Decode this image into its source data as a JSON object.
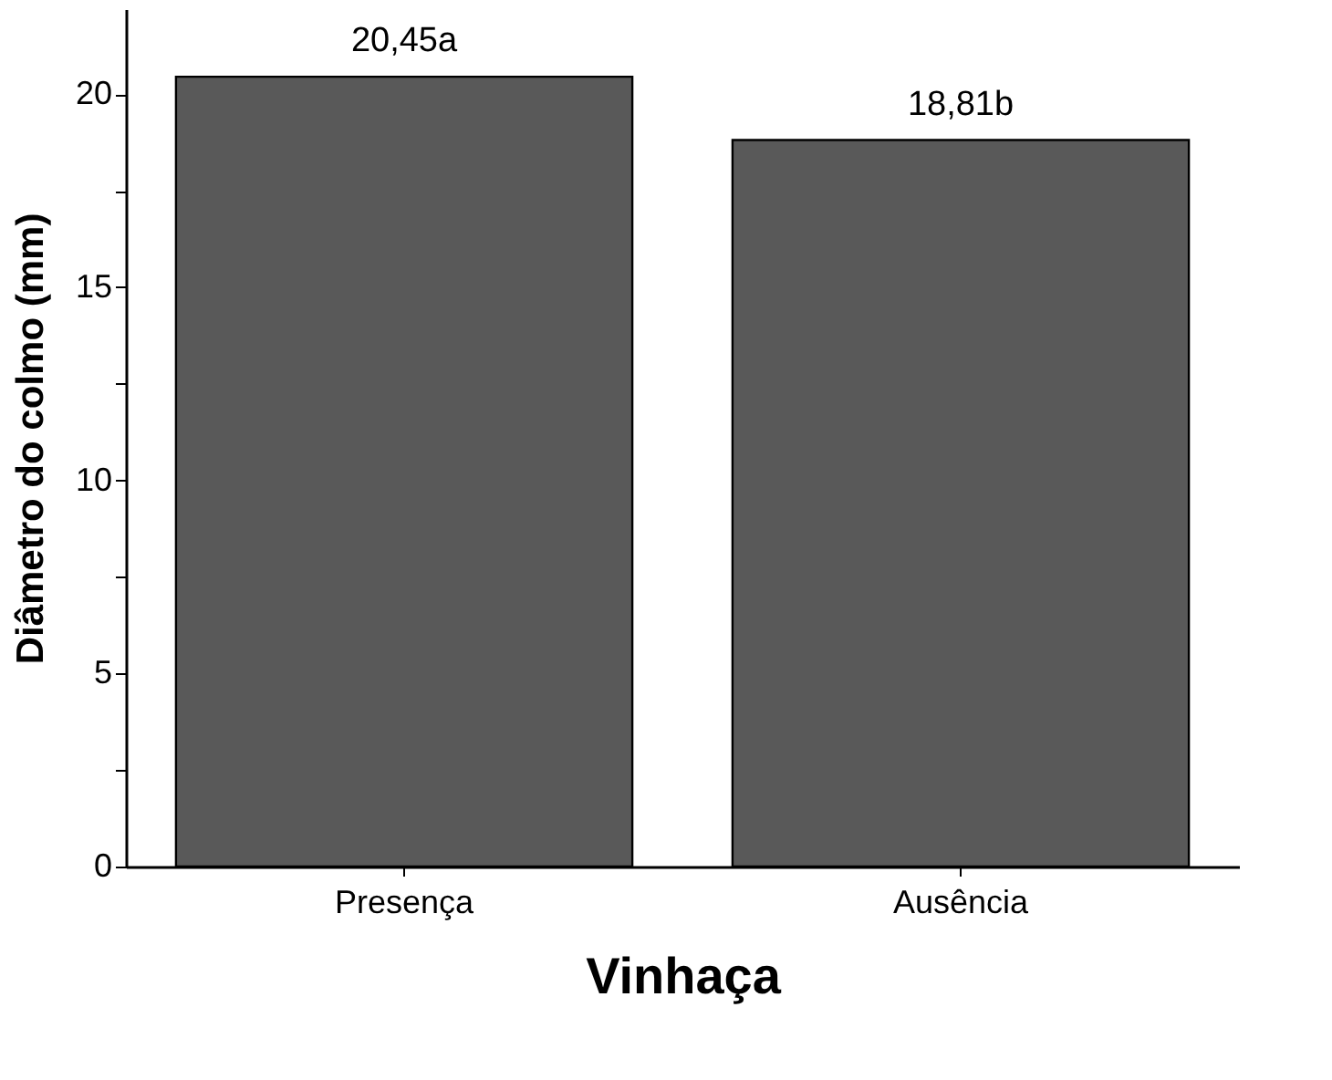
{
  "chart_data": {
    "type": "bar",
    "xlabel": "Vinhaça",
    "ylabel": "Diâmetro do colmo (mm)",
    "categories": [
      "Presença",
      "Ausência"
    ],
    "values": [
      20.45,
      18.81
    ],
    "value_labels": [
      "20,45a",
      "18,81b"
    ],
    "color": "#595959",
    "ylim": [
      0,
      22.2
    ],
    "yticks": [
      0,
      {
        "value": 2.5,
        "label": null
      },
      5,
      {
        "value": 7.5,
        "label": null
      },
      10,
      {
        "value": 12.5,
        "label": null
      },
      15,
      {
        "value": 17.5,
        "label": null
      },
      20
    ],
    "grid": false
  }
}
